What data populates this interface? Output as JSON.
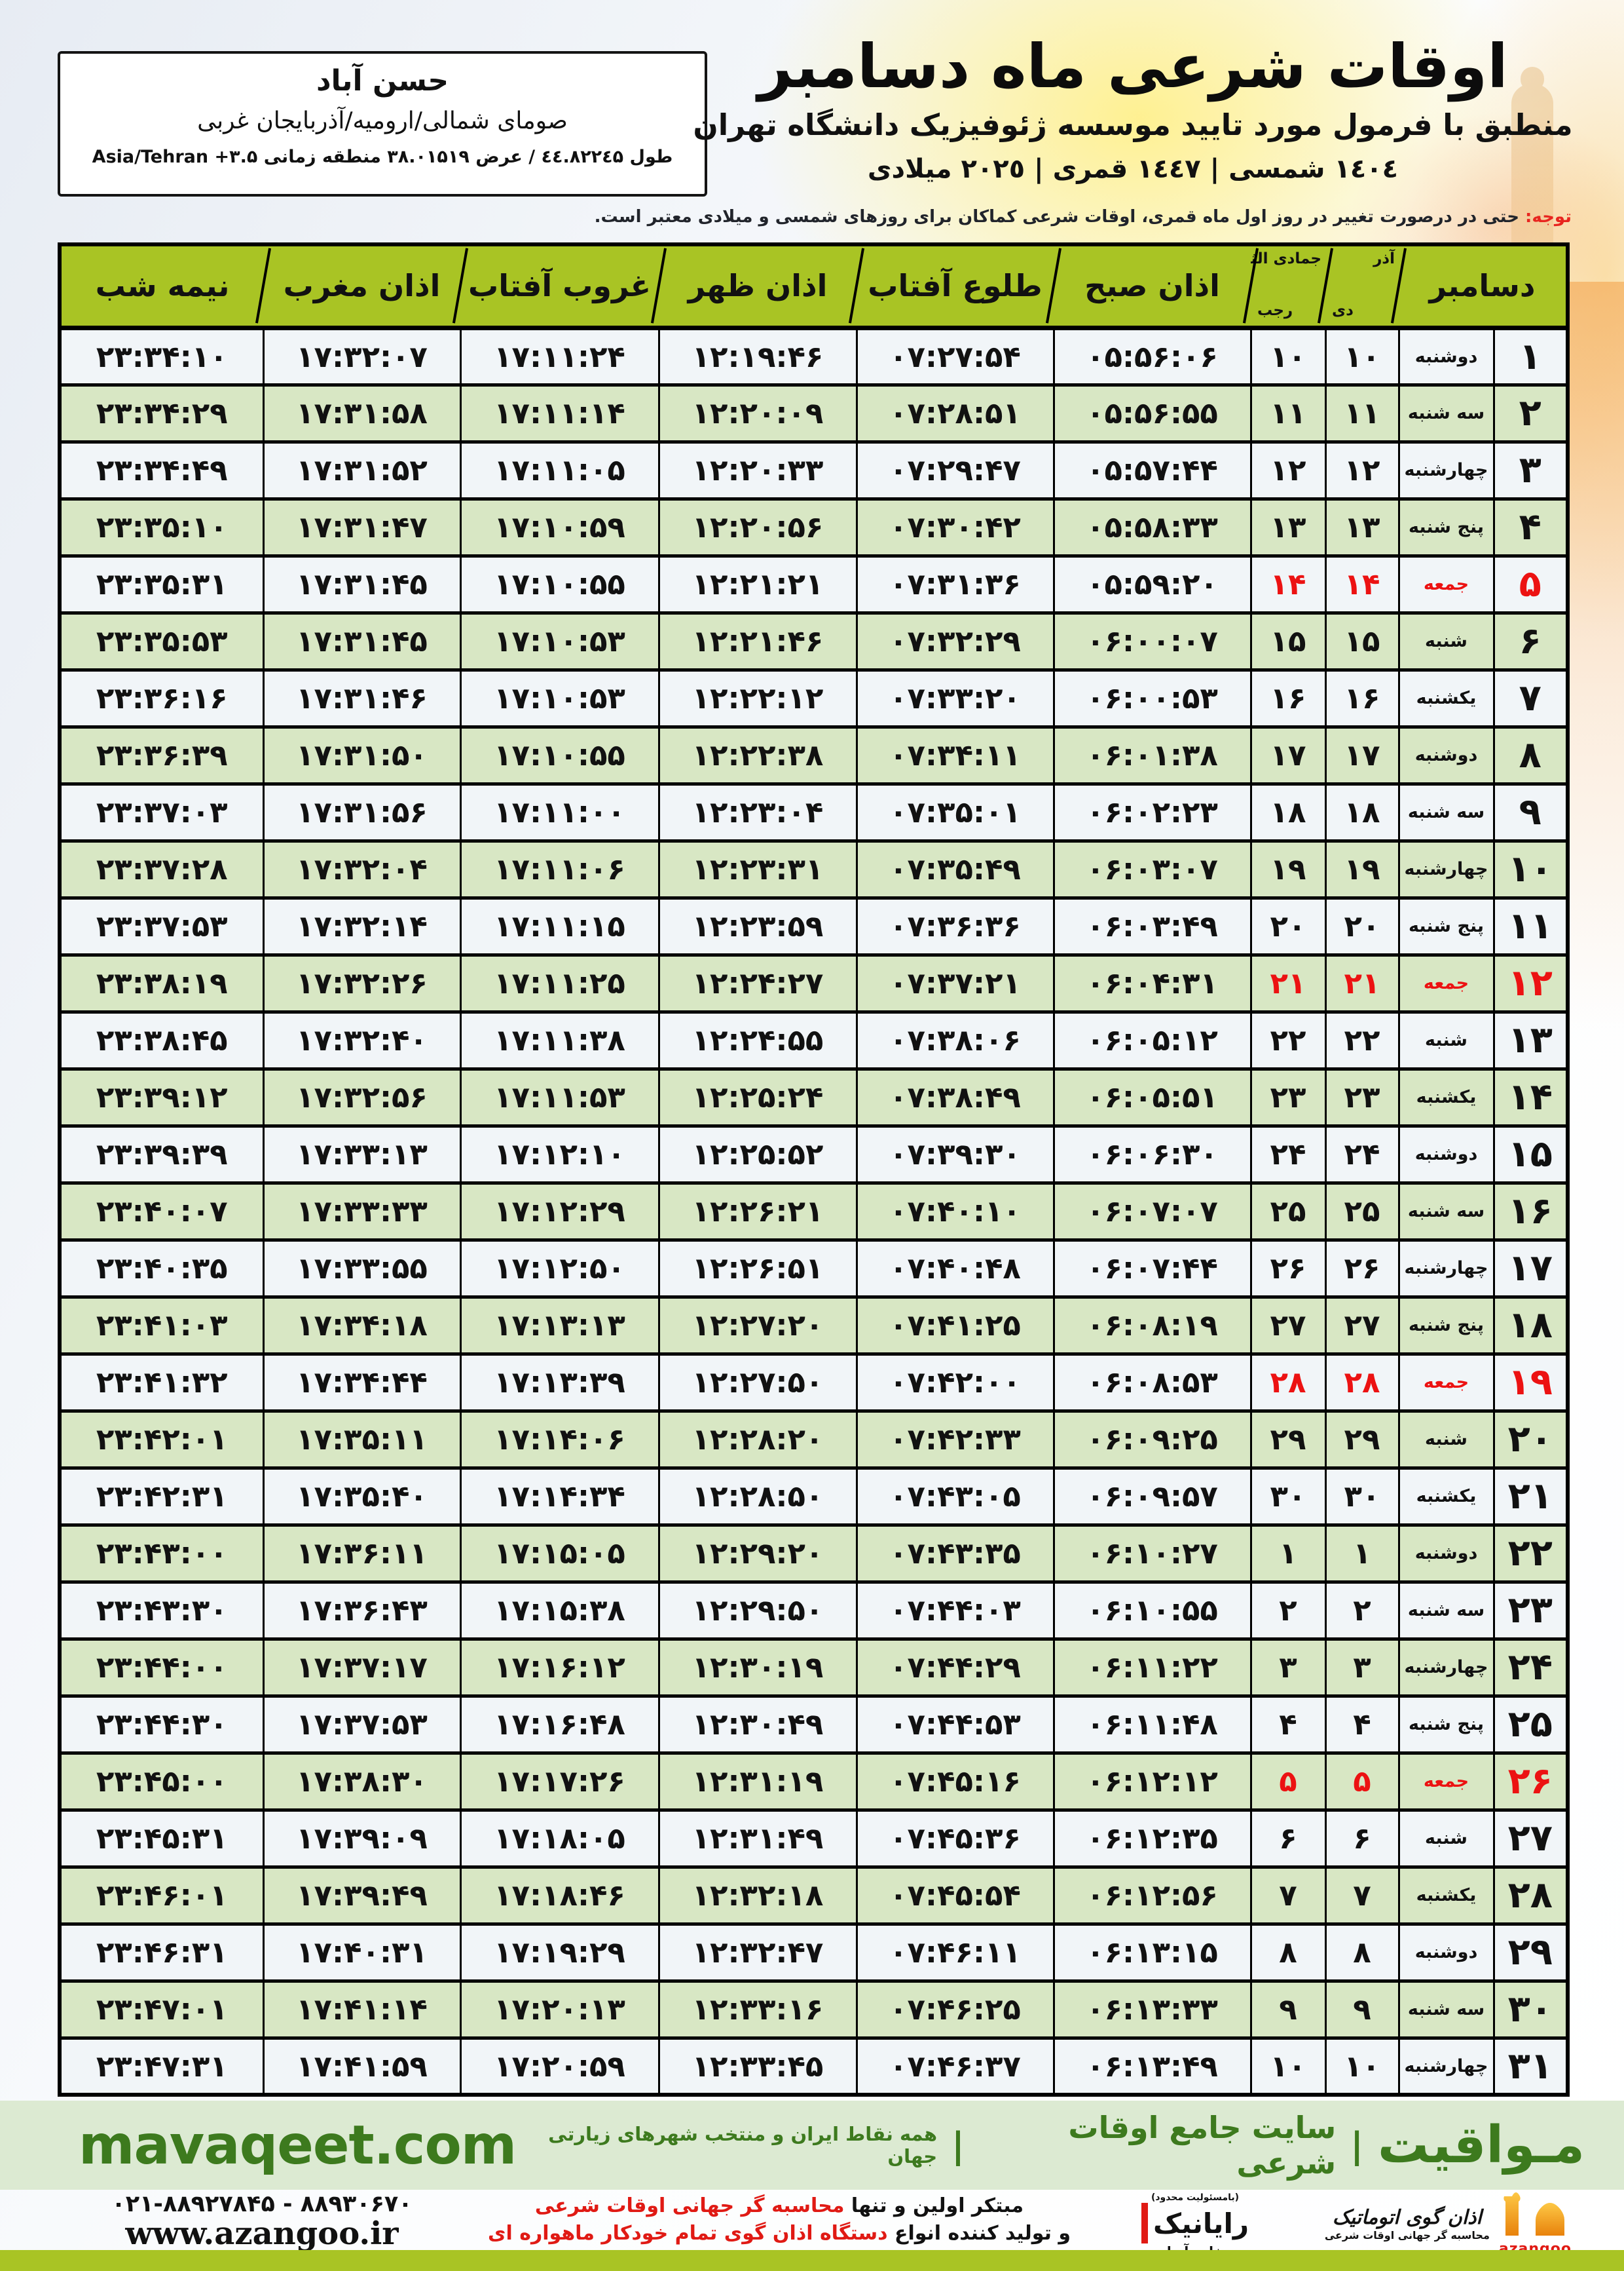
{
  "location_box": {
    "city": "حسن آباد",
    "region": "صومای شمالی/ارومیه/آذربایجان غربی",
    "coordinates": "طول ٤٤.۸۲۲٤۵ / عرض ۳۸.۰۱۵۱۹ منطقه زمانی Asia/Tehran +۳.۵"
  },
  "title": {
    "line1": "اوقات شرعی ماه دسامبر",
    "line2": "منطبق با فرمول مورد تایید موسسه ژئوفیزیک دانشگاه تهران",
    "line3": "١٤٠٤ شمسی | ١٤٤٧ قمری | ٢٠٢٥ میلادی"
  },
  "notice": {
    "label": "توجه:",
    "text": " حتی در درصورت تغییر در روز اول ماه قمری، اوقات شرعی کماکان برای روزهای شمسی و میلادی معتبر است."
  },
  "table": {
    "headers": {
      "december": "دسامبر",
      "persian_months_top": "آذر",
      "persian_months_bottom": "دی",
      "hijri_months_top": "جمادی الثانی",
      "hijri_months_bottom": "رجب",
      "azan_sobh": "اذان صبح",
      "tolu_aftab": "طلوع آفتاب",
      "azan_zohr": "اذان ظهر",
      "ghorub_aftab": "غروب آفتاب",
      "azan_maghreb": "اذان مغرب",
      "nimeh_shab": "نیمه شب"
    },
    "rows": [
      {
        "day": "۱",
        "weekday": "دوشنبه",
        "persian_day": "۱۰",
        "hijri_day": "۱۰",
        "azan_sobh": "۰۵:۵۶:۰۶",
        "tolu_aftab": "۰۷:۲۷:۵۴",
        "azan_zohr": "۱۲:۱۹:۴۶",
        "ghorub_aftab": "۱۷:۱۱:۲۴",
        "azan_maghreb": "۱۷:۳۲:۰۷",
        "nimeh_shab": "۲۳:۳۴:۱۰",
        "holiday": false
      },
      {
        "day": "۲",
        "weekday": "سه شنبه",
        "persian_day": "۱۱",
        "hijri_day": "۱۱",
        "azan_sobh": "۰۵:۵۶:۵۵",
        "tolu_aftab": "۰۷:۲۸:۵۱",
        "azan_zohr": "۱۲:۲۰:۰۹",
        "ghorub_aftab": "۱۷:۱۱:۱۴",
        "azan_maghreb": "۱۷:۳۱:۵۸",
        "nimeh_shab": "۲۳:۳۴:۲۹",
        "holiday": false
      },
      {
        "day": "۳",
        "weekday": "چهارشنبه",
        "persian_day": "۱۲",
        "hijri_day": "۱۲",
        "azan_sobh": "۰۵:۵۷:۴۴",
        "tolu_aftab": "۰۷:۲۹:۴۷",
        "azan_zohr": "۱۲:۲۰:۳۳",
        "ghorub_aftab": "۱۷:۱۱:۰۵",
        "azan_maghreb": "۱۷:۳۱:۵۲",
        "nimeh_shab": "۲۳:۳۴:۴۹",
        "holiday": false
      },
      {
        "day": "۴",
        "weekday": "پنج شنبه",
        "persian_day": "۱۳",
        "hijri_day": "۱۳",
        "azan_sobh": "۰۵:۵۸:۳۳",
        "tolu_aftab": "۰۷:۳۰:۴۲",
        "azan_zohr": "۱۲:۲۰:۵۶",
        "ghorub_aftab": "۱۷:۱۰:۵۹",
        "azan_maghreb": "۱۷:۳۱:۴۷",
        "nimeh_shab": "۲۳:۳۵:۱۰",
        "holiday": false
      },
      {
        "day": "۵",
        "weekday": "جمعه",
        "persian_day": "۱۴",
        "hijri_day": "۱۴",
        "azan_sobh": "۰۵:۵۹:۲۰",
        "tolu_aftab": "۰۷:۳۱:۳۶",
        "azan_zohr": "۱۲:۲۱:۲۱",
        "ghorub_aftab": "۱۷:۱۰:۵۵",
        "azan_maghreb": "۱۷:۳۱:۴۵",
        "nimeh_shab": "۲۳:۳۵:۳۱",
        "holiday": true
      },
      {
        "day": "۶",
        "weekday": "شنبه",
        "persian_day": "۱۵",
        "hijri_day": "۱۵",
        "azan_sobh": "۰۶:۰۰:۰۷",
        "tolu_aftab": "۰۷:۳۲:۲۹",
        "azan_zohr": "۱۲:۲۱:۴۶",
        "ghorub_aftab": "۱۷:۱۰:۵۳",
        "azan_maghreb": "۱۷:۳۱:۴۵",
        "nimeh_shab": "۲۳:۳۵:۵۳",
        "holiday": false
      },
      {
        "day": "۷",
        "weekday": "یکشنبه",
        "persian_day": "۱۶",
        "hijri_day": "۱۶",
        "azan_sobh": "۰۶:۰۰:۵۳",
        "tolu_aftab": "۰۷:۳۳:۲۰",
        "azan_zohr": "۱۲:۲۲:۱۲",
        "ghorub_aftab": "۱۷:۱۰:۵۳",
        "azan_maghreb": "۱۷:۳۱:۴۶",
        "nimeh_shab": "۲۳:۳۶:۱۶",
        "holiday": false
      },
      {
        "day": "۸",
        "weekday": "دوشنبه",
        "persian_day": "۱۷",
        "hijri_day": "۱۷",
        "azan_sobh": "۰۶:۰۱:۳۸",
        "tolu_aftab": "۰۷:۳۴:۱۱",
        "azan_zohr": "۱۲:۲۲:۳۸",
        "ghorub_aftab": "۱۷:۱۰:۵۵",
        "azan_maghreb": "۱۷:۳۱:۵۰",
        "nimeh_shab": "۲۳:۳۶:۳۹",
        "holiday": false
      },
      {
        "day": "۹",
        "weekday": "سه شنبه",
        "persian_day": "۱۸",
        "hijri_day": "۱۸",
        "azan_sobh": "۰۶:۰۲:۲۳",
        "tolu_aftab": "۰۷:۳۵:۰۱",
        "azan_zohr": "۱۲:۲۳:۰۴",
        "ghorub_aftab": "۱۷:۱۱:۰۰",
        "azan_maghreb": "۱۷:۳۱:۵۶",
        "nimeh_shab": "۲۳:۳۷:۰۳",
        "holiday": false
      },
      {
        "day": "۱۰",
        "weekday": "چهارشنبه",
        "persian_day": "۱۹",
        "hijri_day": "۱۹",
        "azan_sobh": "۰۶:۰۳:۰۷",
        "tolu_aftab": "۰۷:۳۵:۴۹",
        "azan_zohr": "۱۲:۲۳:۳۱",
        "ghorub_aftab": "۱۷:۱۱:۰۶",
        "azan_maghreb": "۱۷:۳۲:۰۴",
        "nimeh_shab": "۲۳:۳۷:۲۸",
        "holiday": false
      },
      {
        "day": "۱۱",
        "weekday": "پنج شنبه",
        "persian_day": "۲۰",
        "hijri_day": "۲۰",
        "azan_sobh": "۰۶:۰۳:۴۹",
        "tolu_aftab": "۰۷:۳۶:۳۶",
        "azan_zohr": "۱۲:۲۳:۵۹",
        "ghorub_aftab": "۱۷:۱۱:۱۵",
        "azan_maghreb": "۱۷:۳۲:۱۴",
        "nimeh_shab": "۲۳:۳۷:۵۳",
        "holiday": false
      },
      {
        "day": "۱۲",
        "weekday": "جمعه",
        "persian_day": "۲۱",
        "hijri_day": "۲۱",
        "azan_sobh": "۰۶:۰۴:۳۱",
        "tolu_aftab": "۰۷:۳۷:۲۱",
        "azan_zohr": "۱۲:۲۴:۲۷",
        "ghorub_aftab": "۱۷:۱۱:۲۵",
        "azan_maghreb": "۱۷:۳۲:۲۶",
        "nimeh_shab": "۲۳:۳۸:۱۹",
        "holiday": true
      },
      {
        "day": "۱۳",
        "weekday": "شنبه",
        "persian_day": "۲۲",
        "hijri_day": "۲۲",
        "azan_sobh": "۰۶:۰۵:۱۲",
        "tolu_aftab": "۰۷:۳۸:۰۶",
        "azan_zohr": "۱۲:۲۴:۵۵",
        "ghorub_aftab": "۱۷:۱۱:۳۸",
        "azan_maghreb": "۱۷:۳۲:۴۰",
        "nimeh_shab": "۲۳:۳۸:۴۵",
        "holiday": false
      },
      {
        "day": "۱۴",
        "weekday": "یکشنبه",
        "persian_day": "۲۳",
        "hijri_day": "۲۳",
        "azan_sobh": "۰۶:۰۵:۵۱",
        "tolu_aftab": "۰۷:۳۸:۴۹",
        "azan_zohr": "۱۲:۲۵:۲۴",
        "ghorub_aftab": "۱۷:۱۱:۵۳",
        "azan_maghreb": "۱۷:۳۲:۵۶",
        "nimeh_shab": "۲۳:۳۹:۱۲",
        "holiday": false
      },
      {
        "day": "۱۵",
        "weekday": "دوشنبه",
        "persian_day": "۲۴",
        "hijri_day": "۲۴",
        "azan_sobh": "۰۶:۰۶:۳۰",
        "tolu_aftab": "۰۷:۳۹:۳۰",
        "azan_zohr": "۱۲:۲۵:۵۲",
        "ghorub_aftab": "۱۷:۱۲:۱۰",
        "azan_maghreb": "۱۷:۳۳:۱۳",
        "nimeh_shab": "۲۳:۳۹:۳۹",
        "holiday": false
      },
      {
        "day": "۱۶",
        "weekday": "سه شنبه",
        "persian_day": "۲۵",
        "hijri_day": "۲۵",
        "azan_sobh": "۰۶:۰۷:۰۷",
        "tolu_aftab": "۰۷:۴۰:۱۰",
        "azan_zohr": "۱۲:۲۶:۲۱",
        "ghorub_aftab": "۱۷:۱۲:۲۹",
        "azan_maghreb": "۱۷:۳۳:۳۳",
        "nimeh_shab": "۲۳:۴۰:۰۷",
        "holiday": false
      },
      {
        "day": "۱۷",
        "weekday": "چهارشنبه",
        "persian_day": "۲۶",
        "hijri_day": "۲۶",
        "azan_sobh": "۰۶:۰۷:۴۴",
        "tolu_aftab": "۰۷:۴۰:۴۸",
        "azan_zohr": "۱۲:۲۶:۵۱",
        "ghorub_aftab": "۱۷:۱۲:۵۰",
        "azan_maghreb": "۱۷:۳۳:۵۵",
        "nimeh_shab": "۲۳:۴۰:۳۵",
        "holiday": false
      },
      {
        "day": "۱۸",
        "weekday": "پنج شنبه",
        "persian_day": "۲۷",
        "hijri_day": "۲۷",
        "azan_sobh": "۰۶:۰۸:۱۹",
        "tolu_aftab": "۰۷:۴۱:۲۵",
        "azan_zohr": "۱۲:۲۷:۲۰",
        "ghorub_aftab": "۱۷:۱۳:۱۳",
        "azan_maghreb": "۱۷:۳۴:۱۸",
        "nimeh_shab": "۲۳:۴۱:۰۳",
        "holiday": false
      },
      {
        "day": "۱۹",
        "weekday": "جمعه",
        "persian_day": "۲۸",
        "hijri_day": "۲۸",
        "azan_sobh": "۰۶:۰۸:۵۳",
        "tolu_aftab": "۰۷:۴۲:۰۰",
        "azan_zohr": "۱۲:۲۷:۵۰",
        "ghorub_aftab": "۱۷:۱۳:۳۹",
        "azan_maghreb": "۱۷:۳۴:۴۴",
        "nimeh_shab": "۲۳:۴۱:۳۲",
        "holiday": true
      },
      {
        "day": "۲۰",
        "weekday": "شنبه",
        "persian_day": "۲۹",
        "hijri_day": "۲۹",
        "azan_sobh": "۰۶:۰۹:۲۵",
        "tolu_aftab": "۰۷:۴۲:۳۳",
        "azan_zohr": "۱۲:۲۸:۲۰",
        "ghorub_aftab": "۱۷:۱۴:۰۶",
        "azan_maghreb": "۱۷:۳۵:۱۱",
        "nimeh_shab": "۲۳:۴۲:۰۱",
        "holiday": false
      },
      {
        "day": "۲۱",
        "weekday": "یکشنبه",
        "persian_day": "۳۰",
        "hijri_day": "۳۰",
        "azan_sobh": "۰۶:۰۹:۵۷",
        "tolu_aftab": "۰۷:۴۳:۰۵",
        "azan_zohr": "۱۲:۲۸:۵۰",
        "ghorub_aftab": "۱۷:۱۴:۳۴",
        "azan_maghreb": "۱۷:۳۵:۴۰",
        "nimeh_shab": "۲۳:۴۲:۳۱",
        "holiday": false
      },
      {
        "day": "۲۲",
        "weekday": "دوشنبه",
        "persian_day": "۱",
        "hijri_day": "۱",
        "azan_sobh": "۰۶:۱۰:۲۷",
        "tolu_aftab": "۰۷:۴۳:۳۵",
        "azan_zohr": "۱۲:۲۹:۲۰",
        "ghorub_aftab": "۱۷:۱۵:۰۵",
        "azan_maghreb": "۱۷:۳۶:۱۱",
        "nimeh_shab": "۲۳:۴۳:۰۰",
        "holiday": false
      },
      {
        "day": "۲۳",
        "weekday": "سه شنبه",
        "persian_day": "۲",
        "hijri_day": "۲",
        "azan_sobh": "۰۶:۱۰:۵۵",
        "tolu_aftab": "۰۷:۴۴:۰۳",
        "azan_zohr": "۱۲:۲۹:۵۰",
        "ghorub_aftab": "۱۷:۱۵:۳۸",
        "azan_maghreb": "۱۷:۳۶:۴۳",
        "nimeh_shab": "۲۳:۴۳:۳۰",
        "holiday": false
      },
      {
        "day": "۲۴",
        "weekday": "چهارشنبه",
        "persian_day": "۳",
        "hijri_day": "۳",
        "azan_sobh": "۰۶:۱۱:۲۲",
        "tolu_aftab": "۰۷:۴۴:۲۹",
        "azan_zohr": "۱۲:۳۰:۱۹",
        "ghorub_aftab": "۱۷:۱۶:۱۲",
        "azan_maghreb": "۱۷:۳۷:۱۷",
        "nimeh_shab": "۲۳:۴۴:۰۰",
        "holiday": false
      },
      {
        "day": "۲۵",
        "weekday": "پنج شنبه",
        "persian_day": "۴",
        "hijri_day": "۴",
        "azan_sobh": "۰۶:۱۱:۴۸",
        "tolu_aftab": "۰۷:۴۴:۵۳",
        "azan_zohr": "۱۲:۳۰:۴۹",
        "ghorub_aftab": "۱۷:۱۶:۴۸",
        "azan_maghreb": "۱۷:۳۷:۵۳",
        "nimeh_shab": "۲۳:۴۴:۳۰",
        "holiday": false
      },
      {
        "day": "۲۶",
        "weekday": "جمعه",
        "persian_day": "۵",
        "hijri_day": "۵",
        "azan_sobh": "۰۶:۱۲:۱۲",
        "tolu_aftab": "۰۷:۴۵:۱۶",
        "azan_zohr": "۱۲:۳۱:۱۹",
        "ghorub_aftab": "۱۷:۱۷:۲۶",
        "azan_maghreb": "۱۷:۳۸:۳۰",
        "nimeh_shab": "۲۳:۴۵:۰۰",
        "holiday": true
      },
      {
        "day": "۲۷",
        "weekday": "شنبه",
        "persian_day": "۶",
        "hijri_day": "۶",
        "azan_sobh": "۰۶:۱۲:۳۵",
        "tolu_aftab": "۰۷:۴۵:۳۶",
        "azan_zohr": "۱۲:۳۱:۴۹",
        "ghorub_aftab": "۱۷:۱۸:۰۵",
        "azan_maghreb": "۱۷:۳۹:۰۹",
        "nimeh_shab": "۲۳:۴۵:۳۱",
        "holiday": false
      },
      {
        "day": "۲۸",
        "weekday": "یکشنبه",
        "persian_day": "۷",
        "hijri_day": "۷",
        "azan_sobh": "۰۶:۱۲:۵۶",
        "tolu_aftab": "۰۷:۴۵:۵۴",
        "azan_zohr": "۱۲:۳۲:۱۸",
        "ghorub_aftab": "۱۷:۱۸:۴۶",
        "azan_maghreb": "۱۷:۳۹:۴۹",
        "nimeh_shab": "۲۳:۴۶:۰۱",
        "holiday": false
      },
      {
        "day": "۲۹",
        "weekday": "دوشنبه",
        "persian_day": "۸",
        "hijri_day": "۸",
        "azan_sobh": "۰۶:۱۳:۱۵",
        "tolu_aftab": "۰۷:۴۶:۱۱",
        "azan_zohr": "۱۲:۳۲:۴۷",
        "ghorub_aftab": "۱۷:۱۹:۲۹",
        "azan_maghreb": "۱۷:۴۰:۳۱",
        "nimeh_shab": "۲۳:۴۶:۳۱",
        "holiday": false
      },
      {
        "day": "۳۰",
        "weekday": "سه شنبه",
        "persian_day": "۹",
        "hijri_day": "۹",
        "azan_sobh": "۰۶:۱۳:۳۳",
        "tolu_aftab": "۰۷:۴۶:۲۵",
        "azan_zohr": "۱۲:۳۳:۱۶",
        "ghorub_aftab": "۱۷:۲۰:۱۳",
        "azan_maghreb": "۱۷:۴۱:۱۴",
        "nimeh_shab": "۲۳:۴۷:۰۱",
        "holiday": false
      },
      {
        "day": "۳۱",
        "weekday": "چهارشنبه",
        "persian_day": "۱۰",
        "hijri_day": "۱۰",
        "azan_sobh": "۰۶:۱۳:۴۹",
        "tolu_aftab": "۰۷:۴۶:۳۷",
        "azan_zohr": "۱۲:۳۳:۴۵",
        "ghorub_aftab": "۱۷:۲۰:۵۹",
        "azan_maghreb": "۱۷:۴۱:۵۹",
        "nimeh_shab": "۲۳:۴۷:۳۱",
        "holiday": false
      }
    ]
  },
  "footer": {
    "mavaqeet": {
      "url": "mavaqeet.com",
      "brand": "مـواقیت",
      "separator": "|",
      "tagline": "سایت جامع اوقات شرعی",
      "subtitle": "همه نقاط ایران و منتخب شهرهای زیارتی جهان"
    },
    "bottom": {
      "phones": "۰۲۱-۸۸۹۲۷۸۴۵ - ۸۸۹۳۰۶۷۰",
      "website": "www.azangoo.ir",
      "promo_line1_black": "مبتکر اولین و تنها ",
      "promo_line1_red": "محاسبه گر جهانی اوقات شرعی",
      "promo_line2_black": "و تولید کننده انواع ",
      "promo_line2_red": "دستگاه اذان گوی تمام خودکار ماهواره ای",
      "rayanik_small": "(بامسئولیت محدود)",
      "rayanik_name": "رایانیک",
      "rayanik_sub": "خاور آریا",
      "azangoo_title": "اذان گوی اتوماتیک",
      "azangoo_sub": "محاسبه گر جهانی اوقات شرعی",
      "azangoo_brand": "azangoo"
    }
  },
  "colors": {
    "header_green": "#a9c424",
    "row_green": "#d8e7c4",
    "row_light": "#f1f5f8",
    "holiday_red": "#ec1212",
    "notice_red": "#e8251f",
    "footer_text_green": "#3d7a1e",
    "footer_band_green": "#dcead2",
    "bottom_bar_green": "#a9c424"
  }
}
